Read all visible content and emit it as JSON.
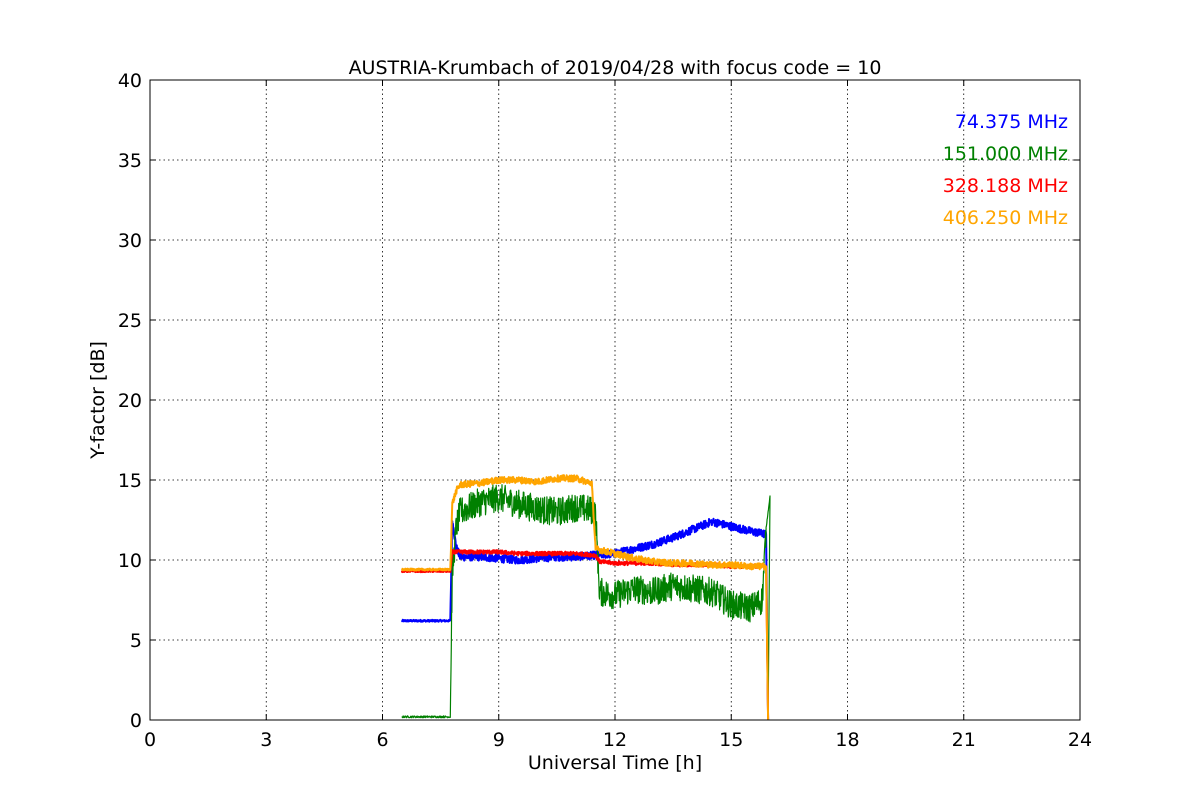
{
  "chart_data": {
    "type": "line",
    "title": "AUSTRIA-Krumbach of 2019/04/28 with focus code = 10",
    "xlabel": "Universal Time [h]",
    "ylabel": "Y-factor [dB]",
    "xlim": [
      0,
      24
    ],
    "ylim": [
      0,
      40
    ],
    "xticks": [
      0,
      3,
      6,
      9,
      12,
      15,
      18,
      21,
      24
    ],
    "yticks": [
      0,
      5,
      10,
      15,
      20,
      25,
      30,
      35,
      40
    ],
    "grid": true,
    "legend_position": "top-right",
    "series": [
      {
        "name": "74.375 MHz",
        "color": "#0000ff",
        "x": [
          6.5,
          7.0,
          7.5,
          7.75,
          7.8,
          7.9,
          8.0,
          8.5,
          9.0,
          9.5,
          10.0,
          10.5,
          11.0,
          11.5,
          12.0,
          12.5,
          13.0,
          13.5,
          14.0,
          14.5,
          15.0,
          15.5,
          15.9
        ],
        "y": [
          6.2,
          6.2,
          6.2,
          6.2,
          12.5,
          10.8,
          10.2,
          10.2,
          10.1,
          10.0,
          10.1,
          10.2,
          10.2,
          10.3,
          10.4,
          10.7,
          11.0,
          11.4,
          11.9,
          12.4,
          12.1,
          11.8,
          11.6
        ]
      },
      {
        "name": "151.000 MHz",
        "color": "#008000",
        "x": [
          6.5,
          7.0,
          7.5,
          7.75,
          7.8,
          7.9,
          8.0,
          8.5,
          9.0,
          9.5,
          10.0,
          10.5,
          11.0,
          11.4,
          11.5,
          11.6,
          12.0,
          12.5,
          13.0,
          13.5,
          14.0,
          14.5,
          15.0,
          15.5,
          15.8,
          15.9,
          16.0
        ],
        "y": [
          0.2,
          0.2,
          0.2,
          0.2,
          9.0,
          12.0,
          13.0,
          13.6,
          13.9,
          13.5,
          13.2,
          13.0,
          13.3,
          13.1,
          12.8,
          8.0,
          7.8,
          8.2,
          8.0,
          8.4,
          8.2,
          8.0,
          7.2,
          7.0,
          7.5,
          12.0,
          14.0
        ]
      },
      {
        "name": "328.188 MHz",
        "color": "#ff0000",
        "x": [
          6.5,
          7.0,
          7.5,
          7.75,
          7.8,
          8.0,
          8.5,
          9.0,
          9.5,
          10.0,
          10.5,
          11.0,
          11.5,
          11.6,
          12.0,
          12.5,
          13.0,
          13.5,
          14.0,
          14.5,
          15.0,
          15.5,
          15.9
        ],
        "y": [
          9.3,
          9.3,
          9.3,
          9.3,
          10.5,
          10.5,
          10.5,
          10.5,
          10.4,
          10.4,
          10.4,
          10.4,
          10.3,
          9.9,
          9.8,
          9.8,
          9.8,
          9.7,
          9.7,
          9.7,
          9.6,
          9.6,
          9.6
        ]
      },
      {
        "name": "406.250 MHz",
        "color": "#ffa500",
        "x": [
          6.5,
          7.0,
          7.5,
          7.75,
          7.8,
          7.9,
          8.0,
          8.5,
          9.0,
          9.5,
          10.0,
          10.5,
          11.0,
          11.4,
          11.5,
          12.0,
          12.5,
          13.0,
          13.5,
          14.0,
          14.5,
          15.0,
          15.5,
          15.9
        ],
        "y": [
          9.4,
          9.4,
          9.4,
          9.4,
          13.5,
          14.3,
          14.7,
          14.8,
          15.0,
          15.0,
          14.9,
          15.1,
          15.1,
          14.8,
          10.7,
          10.4,
          10.1,
          9.9,
          9.8,
          9.8,
          9.7,
          9.7,
          9.6,
          9.6
        ]
      }
    ]
  }
}
